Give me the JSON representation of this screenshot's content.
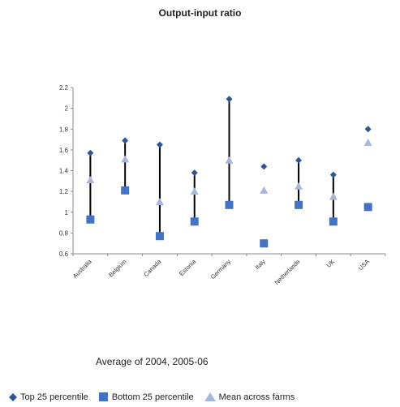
{
  "chart_data": {
    "type": "scatter",
    "title": "Output-input ratio",
    "subtitle": "Average of 2004, 2005-06",
    "xlabel": "",
    "ylabel": "",
    "categories": [
      "Australia",
      "Belgium",
      "Canada",
      "Estonia",
      "Germany",
      "Italy",
      "Netherlands",
      "UK",
      "USA"
    ],
    "ylim": [
      0.6,
      2.2
    ],
    "yticks": [
      "0.6",
      "0.8",
      "1",
      "1.2",
      "1.4",
      "1.6",
      "1.8",
      "2",
      "2.2"
    ],
    "legend_position": "bottom",
    "grid": false,
    "series": [
      {
        "name": "Top 25 percentile",
        "marker": "diamond",
        "color": "#2f5597",
        "values": [
          1.57,
          1.69,
          1.65,
          1.38,
          2.09,
          1.44,
          1.5,
          1.36,
          1.8
        ]
      },
      {
        "name": "Bottom 25 percentile",
        "marker": "square",
        "color": "#4472c4",
        "values": [
          0.93,
          1.21,
          0.77,
          0.91,
          1.07,
          0.7,
          1.07,
          0.91,
          1.05
        ]
      },
      {
        "name": "Mean across farms",
        "marker": "triangle",
        "color": "#a6b7dd",
        "values": [
          1.31,
          1.51,
          1.1,
          1.2,
          1.5,
          1.21,
          1.25,
          1.15,
          1.67
        ]
      }
    ],
    "range_lines": [
      0,
      1,
      2,
      3,
      4,
      6,
      7
    ]
  }
}
